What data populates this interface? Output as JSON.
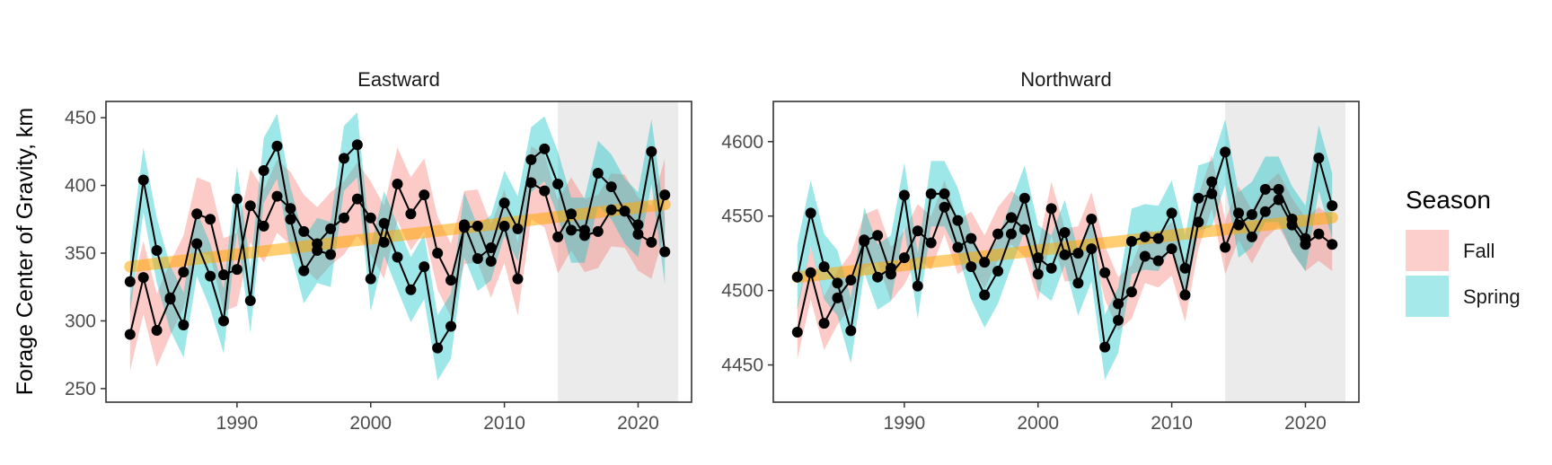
{
  "chart_data": {
    "type": "line",
    "y_axis_title": "Forage Center of Gravity, km",
    "legend": {
      "title": "Season",
      "position": "right",
      "items": [
        {
          "label": "Fall",
          "color": "#F8766D"
        },
        {
          "label": "Spring",
          "color": "#00BFC4"
        }
      ]
    },
    "x_ticks": [
      1990,
      2000,
      2010,
      2020
    ],
    "xlim": [
      1980.2,
      2024
    ],
    "shaded_period": [
      2014,
      2023
    ],
    "panels": [
      {
        "title": "Eastward",
        "ylim": [
          240,
          462
        ],
        "y_ticks": [
          250,
          300,
          350,
          400,
          450
        ],
        "trend": {
          "x": [
            1982,
            2022
          ],
          "y": [
            340,
            386
          ]
        },
        "series": [
          {
            "name": "Fall",
            "color": "#F8766D",
            "x": [
              1982,
              1983,
              1984,
              1985,
              1986,
              1987,
              1988,
              1989,
              1990,
              1991,
              1992,
              1993,
              1994,
              1995,
              1996,
              1997,
              1998,
              1999,
              2000,
              2001,
              2002,
              2003,
              2004,
              2005,
              2006,
              2007,
              2008,
              2009,
              2010,
              2011,
              2012,
              2013,
              2014,
              2015,
              2016,
              2017,
              2018,
              2019,
              2020,
              2021,
              2022
            ],
            "y": [
              290,
              332,
              293,
              316,
              336,
              379,
              375,
              334,
              338,
              385,
              370,
              392,
              383,
              366,
              357,
              368,
              376,
              390,
              376,
              358,
              401,
              379,
              393,
              350,
              330,
              369,
              370,
              344,
              370,
              331,
              402,
              396,
              362,
              379,
              363,
              366,
              382,
              381,
              364,
              358,
              393
            ],
            "ci_width": 27
          },
          {
            "name": "Spring",
            "color": "#00BFC4",
            "x": [
              1982,
              1983,
              1984,
              1985,
              1986,
              1987,
              1988,
              1989,
              1990,
              1991,
              1992,
              1993,
              1994,
              1995,
              1996,
              1997,
              1998,
              1999,
              2000,
              2001,
              2002,
              2003,
              2004,
              2005,
              2006,
              2007,
              2008,
              2009,
              2010,
              2011,
              2012,
              2013,
              2014,
              2015,
              2016,
              2017,
              2018,
              2019,
              2020,
              2021,
              2022
            ],
            "y": [
              329,
              404,
              352,
              317,
              297,
              357,
              333,
              300,
              390,
              315,
              411,
              429,
              375,
              337,
              352,
              349,
              420,
              430,
              331,
              372,
              347,
              323,
              340,
              280,
              296,
              371,
              346,
              354,
              387,
              368,
              419,
              427,
              401,
              367,
              367,
              409,
              399,
              381,
              371,
              425,
              351
            ],
            "ci_width": 24
          }
        ]
      },
      {
        "title": "Northward",
        "ylim": [
          4425,
          4627
        ],
        "y_ticks": [
          4450,
          4500,
          4550,
          4600
        ],
        "trend": {
          "x": [
            1982,
            2022
          ],
          "y": [
            4509,
            4549
          ]
        },
        "series": [
          {
            "name": "Fall",
            "color": "#F8766D",
            "x": [
              1982,
              1983,
              1984,
              1985,
              1986,
              1987,
              1988,
              1989,
              1990,
              1991,
              1992,
              1993,
              1994,
              1995,
              1996,
              1997,
              1998,
              1999,
              2000,
              2001,
              2002,
              2003,
              2004,
              2005,
              2006,
              2007,
              2008,
              2009,
              2010,
              2011,
              2012,
              2013,
              2014,
              2015,
              2016,
              2017,
              2018,
              2019,
              2020,
              2021,
              2022
            ],
            "y": [
              4472,
              4512,
              4478,
              4495,
              4507,
              4533,
              4537,
              4511,
              4522,
              4540,
              4532,
              4556,
              4529,
              4535,
              4519,
              4538,
              4549,
              4541,
              4511,
              4555,
              4524,
              4525,
              4548,
              4512,
              4491,
              4499,
              4523,
              4520,
              4528,
              4497,
              4546,
              4573,
              4529,
              4552,
              4536,
              4553,
              4561,
              4544,
              4531,
              4538,
              4531
            ],
            "ci_width": 18
          },
          {
            "name": "Spring",
            "color": "#00BFC4",
            "x": [
              1982,
              1983,
              1984,
              1985,
              1986,
              1987,
              1988,
              1989,
              1990,
              1991,
              1992,
              1993,
              1994,
              1995,
              1996,
              1997,
              1998,
              1999,
              2000,
              2001,
              2002,
              2003,
              2004,
              2005,
              2006,
              2007,
              2008,
              2009,
              2010,
              2011,
              2012,
              2013,
              2014,
              2015,
              2016,
              2017,
              2018,
              2019,
              2020,
              2021,
              2022
            ],
            "y": [
              4509,
              4552,
              4516,
              4505,
              4473,
              4534,
              4509,
              4515,
              4564,
              4503,
              4565,
              4565,
              4547,
              4516,
              4497,
              4513,
              4538,
              4562,
              4522,
              4515,
              4539,
              4505,
              4528,
              4462,
              4480,
              4533,
              4536,
              4535,
              4552,
              4515,
              4562,
              4565,
              4593,
              4544,
              4551,
              4568,
              4568,
              4548,
              4535,
              4589,
              4557
            ],
            "ci_width": 22
          }
        ]
      }
    ]
  }
}
